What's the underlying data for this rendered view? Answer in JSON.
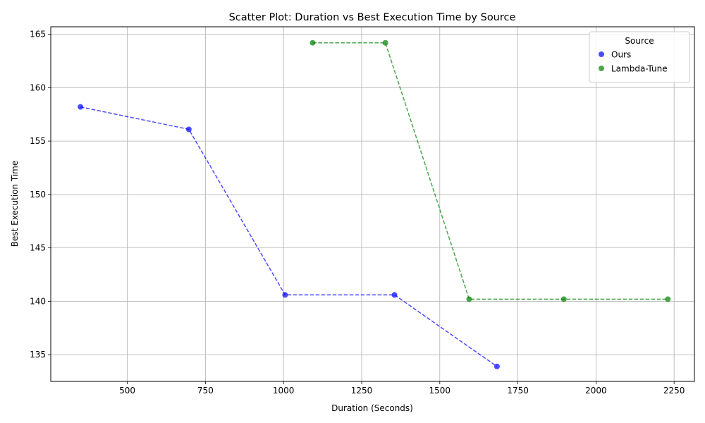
{
  "chart_data": {
    "type": "scatter",
    "title": "Scatter Plot: Duration vs Best Execution Time by Source",
    "xlabel": "Duration (Seconds)",
    "ylabel": "Best Execution Time",
    "xlim": [
      255,
      2315
    ],
    "ylim": [
      132.5,
      165.7
    ],
    "xticks": [
      500,
      750,
      1000,
      1250,
      1500,
      1750,
      2000,
      2250
    ],
    "yticks": [
      135,
      140,
      145,
      150,
      155,
      160,
      165
    ],
    "grid": true,
    "legend": {
      "title": "Source",
      "placement": "top-right"
    },
    "series": [
      {
        "name": "Ours",
        "color": "#0000ff",
        "x": [
          350,
          697,
          1005,
          1355,
          1683
        ],
        "y": [
          158.2,
          156.1,
          140.6,
          140.6,
          133.9
        ]
      },
      {
        "name": "Lambda-Tune",
        "color": "#008000",
        "x": [
          1093,
          1326,
          1594,
          1897,
          2230
        ],
        "y": [
          164.2,
          164.2,
          140.2,
          140.2,
          140.2
        ]
      }
    ]
  }
}
